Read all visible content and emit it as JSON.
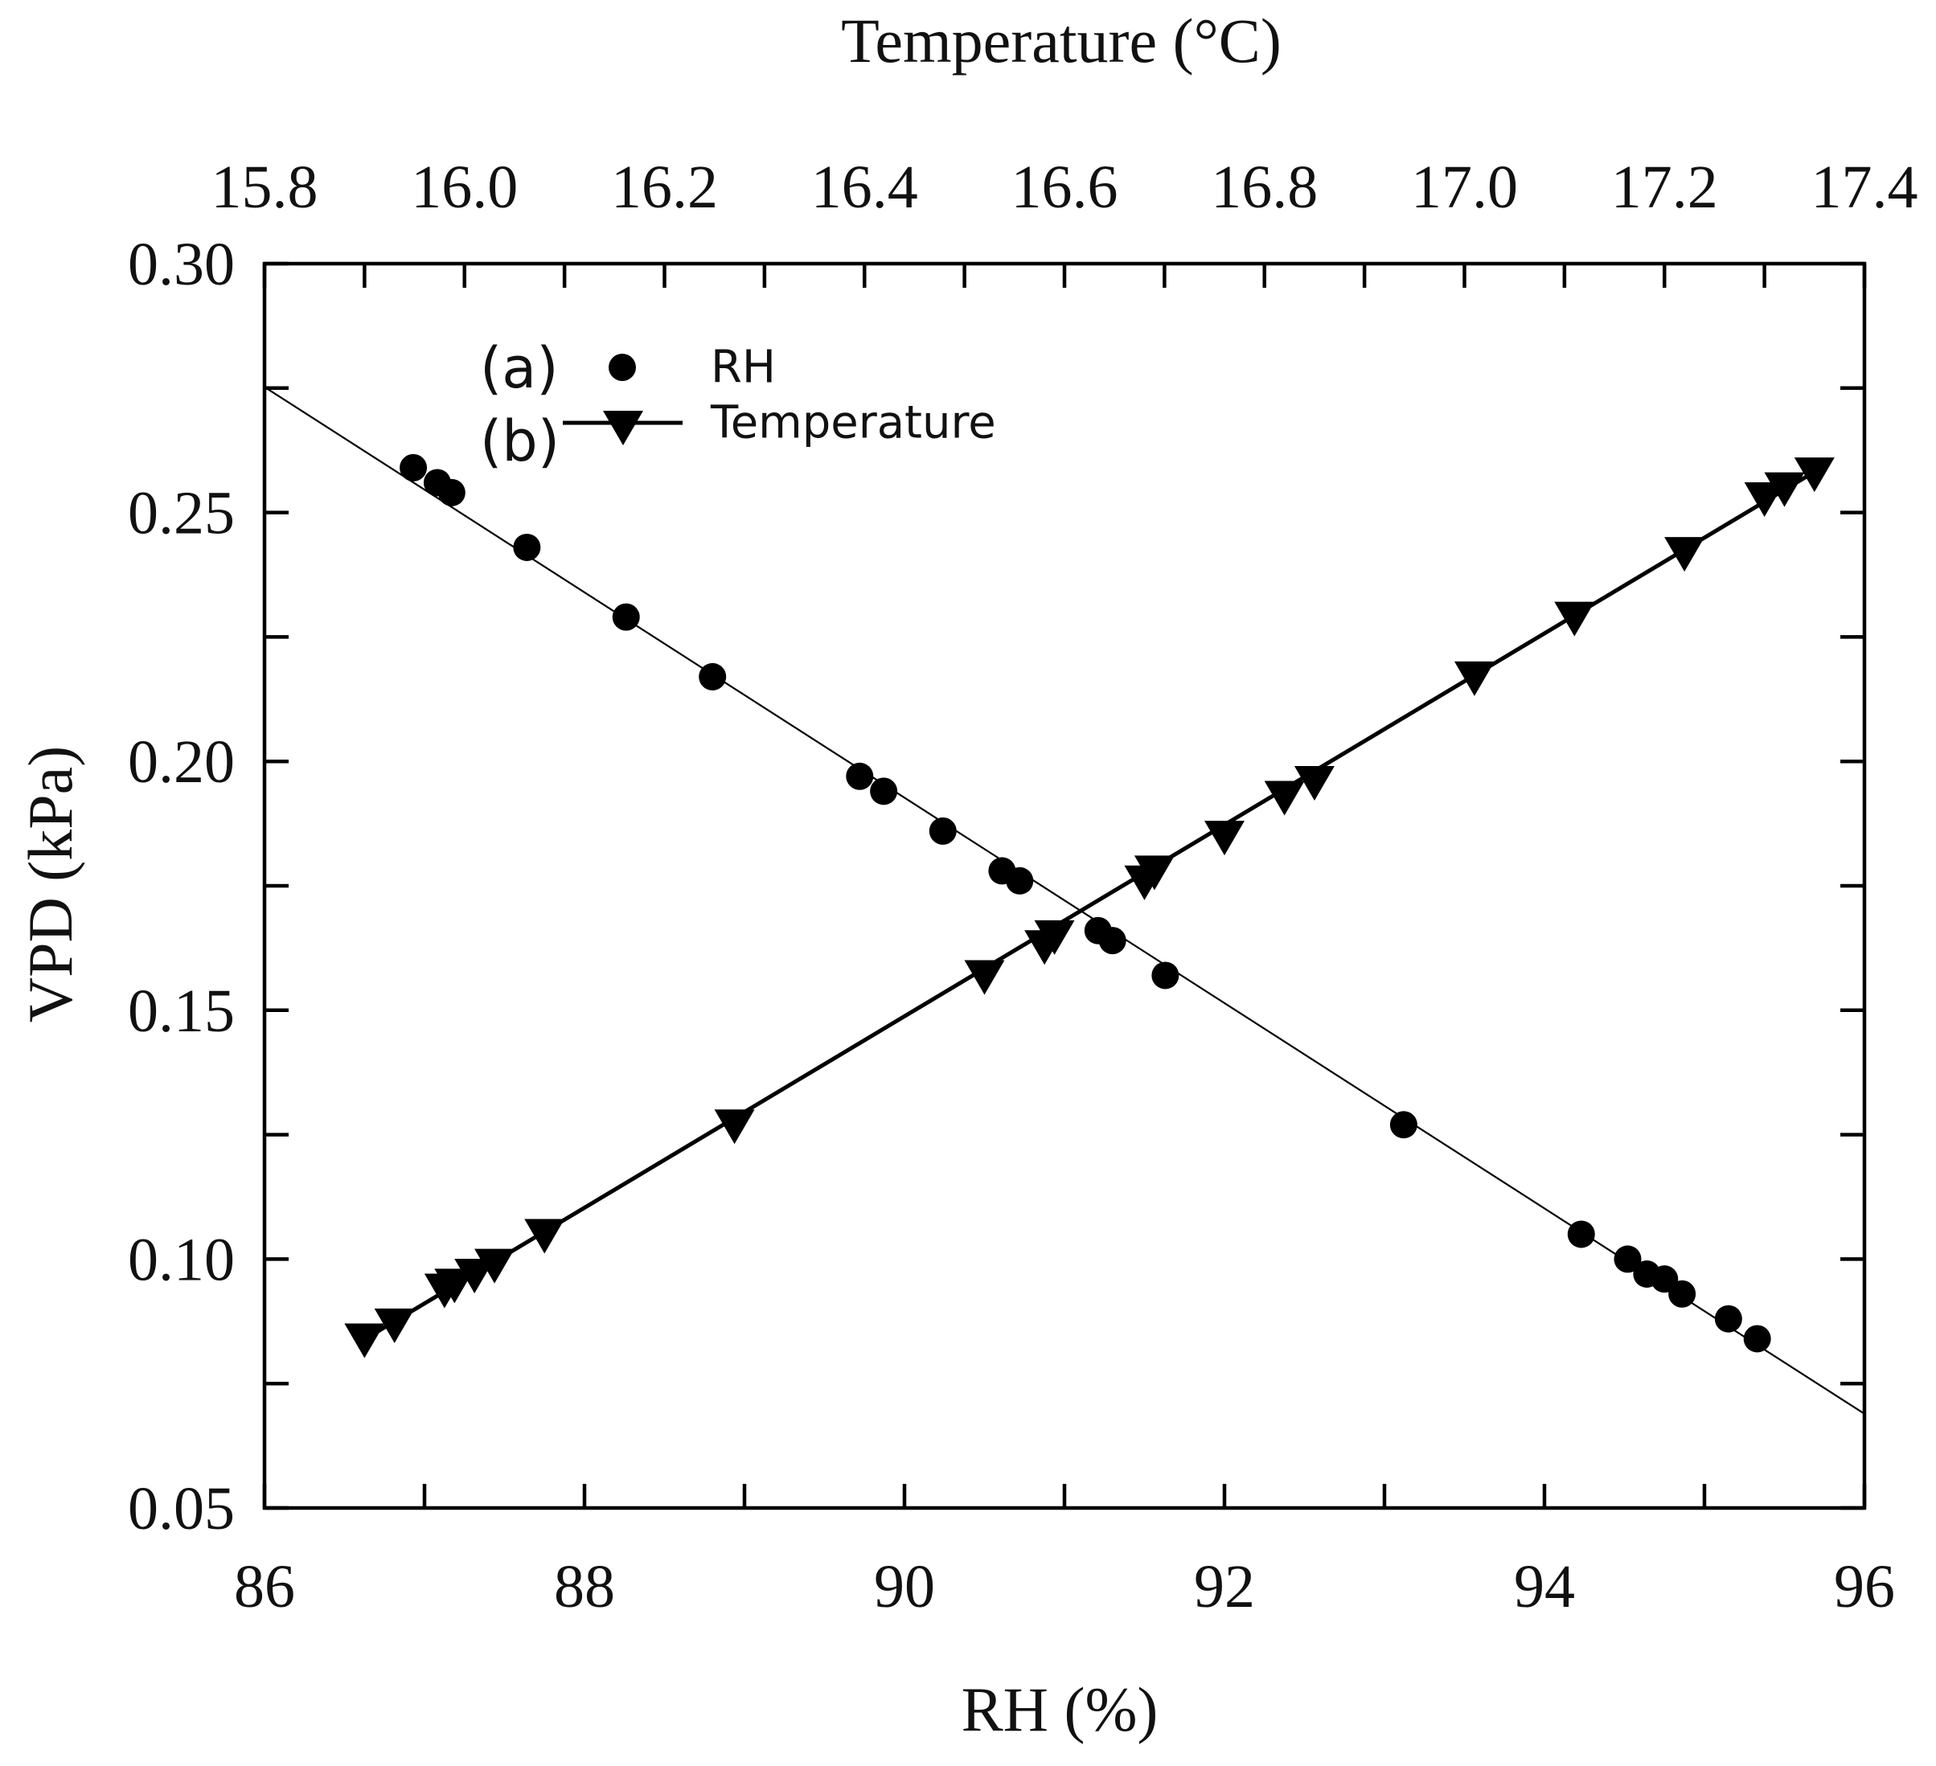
{
  "chart_data": {
    "type": "scatter",
    "title": "",
    "grid": false,
    "legend_position": "top-left",
    "x_axis": {
      "label": "RH (%)",
      "lim": [
        86,
        96
      ],
      "minor_step": 1,
      "tick_labels": [
        "86",
        "88",
        "90",
        "92",
        "94",
        "96"
      ]
    },
    "x2_axis": {
      "label": "Temperature (°C)",
      "lim": [
        15.8,
        17.4
      ],
      "minor_step": 0.1,
      "tick_labels": [
        "15.8",
        "16.0",
        "16.2",
        "16.4",
        "16.6",
        "16.8",
        "17.0",
        "17.2",
        "17.4"
      ]
    },
    "y_axis": {
      "label": "VPD (kPa)",
      "lim": [
        0.05,
        0.3
      ],
      "minor_step": 0.025,
      "tick_labels": [
        "0.05",
        "0.10",
        "0.15",
        "0.20",
        "0.25",
        "0.30"
      ]
    },
    "series": [
      {
        "name": "RH",
        "legend_prefix": "(a)",
        "marker": "circle",
        "uses_top_axis": false,
        "color": "#000000",
        "x": [
          86.93,
          87.08,
          87.17,
          87.64,
          88.26,
          88.8,
          89.72,
          89.87,
          90.24,
          90.61,
          90.72,
          91.21,
          91.3,
          91.63,
          93.12,
          94.23,
          94.52,
          94.64,
          94.75,
          94.86,
          95.15,
          95.33
        ],
        "y": [
          0.259,
          0.256,
          0.254,
          0.243,
          0.229,
          0.217,
          0.197,
          0.194,
          0.186,
          0.178,
          0.176,
          0.166,
          0.164,
          0.157,
          0.127,
          0.105,
          0.1,
          0.097,
          0.096,
          0.093,
          0.088,
          0.084
        ],
        "fit": {
          "intercept": 2.0494,
          "slope": -0.02063,
          "span": [
            86,
            96
          ]
        }
      },
      {
        "name": "Temperature",
        "legend_prefix": "(b)",
        "marker": "triangle-down",
        "uses_top_axis": true,
        "color": "#000000",
        "x": [
          15.9,
          15.93,
          15.98,
          15.99,
          16.01,
          16.03,
          16.08,
          16.27,
          16.52,
          16.58,
          16.59,
          16.68,
          16.69,
          16.76,
          16.82,
          16.85,
          17.01,
          17.11,
          17.22,
          17.3,
          17.32,
          17.35
        ],
        "y": [
          0.084,
          0.087,
          0.094,
          0.095,
          0.097,
          0.099,
          0.105,
          0.127,
          0.157,
          0.163,
          0.165,
          0.176,
          0.178,
          0.185,
          0.193,
          0.196,
          0.217,
          0.229,
          0.242,
          0.253,
          0.255,
          0.258
        ],
        "fit": {
          "intercept": -1.8273,
          "slope": 0.1202,
          "span": [
            15.9,
            17.35
          ]
        }
      }
    ]
  }
}
